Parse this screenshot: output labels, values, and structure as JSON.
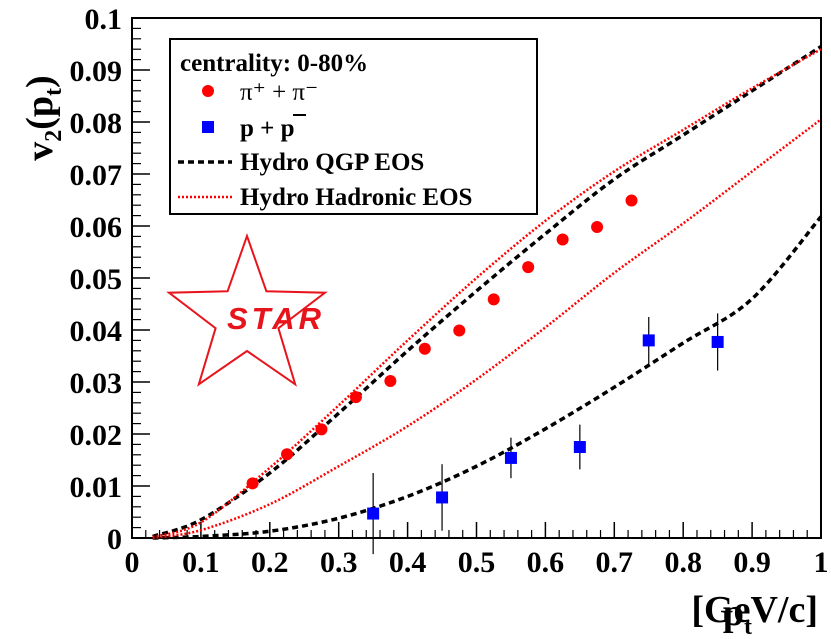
{
  "chart_data": {
    "type": "scatter",
    "title": "",
    "xlabel": "p",
    "xlabel_sub": "t",
    "xlabel_units": "[GeV/c]",
    "ylabel_main": "v",
    "ylabel_sub2": "2",
    "ylabel_open": "(p",
    "ylabel_sub_t": "t",
    "ylabel_close": ")",
    "xlim": [
      0,
      1
    ],
    "ylim": [
      0,
      0.1
    ],
    "x_ticks": [
      "0",
      "0.1",
      "0.2",
      "0.3",
      "0.4",
      "0.5",
      "0.6",
      "0.7",
      "0.8",
      "0.9",
      "1"
    ],
    "y_ticks": [
      "0",
      "0.01",
      "0.02",
      "0.03",
      "0.04",
      "0.05",
      "0.06",
      "0.07",
      "0.08",
      "0.09",
      "0.1"
    ],
    "legend": {
      "header": "centrality: 0-80%",
      "pion_label": "π⁺ + π⁻",
      "proton_label": "p + p",
      "hydro_qgp_label": "Hydro QGP EOS",
      "hydro_hadronic_label": "Hydro Hadronic EOS",
      "position": "top-left"
    },
    "logo": "STAR",
    "series": [
      {
        "name": "π+ + π-",
        "marker": "circle",
        "color": "#ff0000",
        "x": [
          0.175,
          0.225,
          0.275,
          0.325,
          0.375,
          0.425,
          0.475,
          0.525,
          0.575,
          0.625,
          0.675,
          0.725
        ],
        "y": [
          0.0105,
          0.0161,
          0.0209,
          0.0271,
          0.0302,
          0.0364,
          0.0399,
          0.0459,
          0.0521,
          0.0574,
          0.0598,
          0.0649
        ],
        "err": [
          0.0003,
          0.0003,
          0.0003,
          0.0004,
          0.0004,
          0.0004,
          0.0005,
          0.0005,
          0.0006,
          0.0007,
          0.0008,
          0.001
        ]
      },
      {
        "name": "p + pbar",
        "marker": "square",
        "color": "#0000ff",
        "x": [
          0.35,
          0.45,
          0.55,
          0.65,
          0.75,
          0.85
        ],
        "y": [
          0.0047,
          0.0078,
          0.0154,
          0.0175,
          0.038,
          0.0377
        ],
        "err": [
          0.0078,
          0.0064,
          0.0039,
          0.0043,
          0.0045,
          0.0055
        ]
      },
      {
        "name": "Hydro QGP EOS (pion)",
        "line": "dashed",
        "color": "#000000",
        "x": [
          0.03,
          0.1,
          0.2,
          0.3,
          0.4,
          0.5,
          0.6,
          0.7,
          0.8,
          0.9,
          1.0
        ],
        "y": [
          0.0003,
          0.0035,
          0.0125,
          0.024,
          0.036,
          0.0475,
          0.0585,
          0.069,
          0.0775,
          0.086,
          0.0945
        ]
      },
      {
        "name": "Hydro QGP EOS (proton)",
        "line": "dashed",
        "color": "#000000",
        "x": [
          0.03,
          0.1,
          0.2,
          0.3,
          0.4,
          0.5,
          0.6,
          0.7,
          0.8,
          0.9,
          1.0
        ],
        "y": [
          0.0,
          0.0003,
          0.0013,
          0.0038,
          0.008,
          0.0138,
          0.021,
          0.029,
          0.0375,
          0.046,
          0.0618
        ]
      },
      {
        "name": "Hydro Hadronic EOS (pion)",
        "line": "dotted",
        "color": "#ff0000",
        "x": [
          0.03,
          0.1,
          0.2,
          0.3,
          0.4,
          0.5,
          0.6,
          0.7,
          0.8,
          0.9,
          1.0
        ],
        "y": [
          0.0002,
          0.003,
          0.0135,
          0.0255,
          0.038,
          0.05,
          0.061,
          0.0705,
          0.0785,
          0.0865,
          0.094
        ]
      },
      {
        "name": "Hydro Hadronic EOS (proton)",
        "line": "dotted",
        "color": "#ff0000",
        "x": [
          0.03,
          0.1,
          0.2,
          0.3,
          0.4,
          0.5,
          0.6,
          0.7,
          0.8,
          0.9,
          1.0
        ],
        "y": [
          0.0,
          0.0015,
          0.0065,
          0.0138,
          0.0215,
          0.0305,
          0.0405,
          0.051,
          0.0605,
          0.0705,
          0.0805
        ]
      }
    ]
  }
}
